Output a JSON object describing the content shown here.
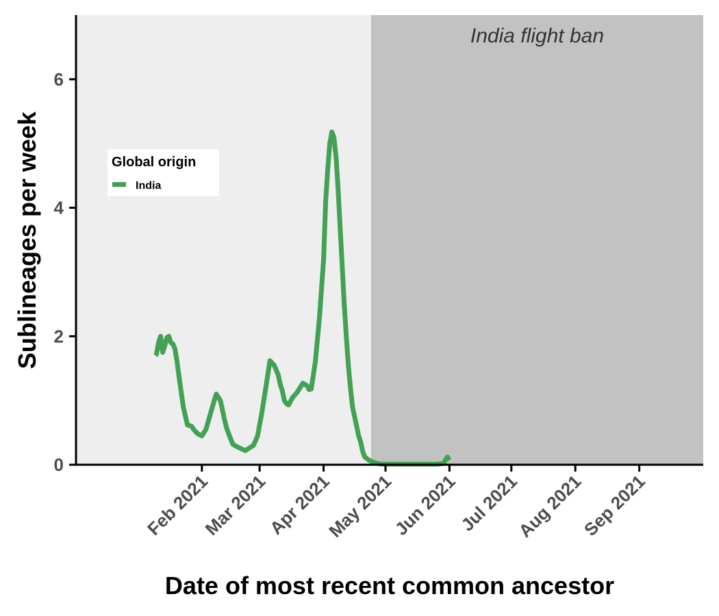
{
  "chart_data": {
    "type": "line",
    "title": "",
    "xlabel": "Date of most recent common ancestor",
    "ylabel": "Sublineages per week",
    "x_unit": "days since 2021-01-01",
    "xlim": [
      -30,
      274
    ],
    "ylim": [
      0,
      7
    ],
    "y_ticks": [
      0,
      2,
      4,
      6
    ],
    "x_ticks": [
      {
        "label": "Feb 2021",
        "value": 31
      },
      {
        "label": "Mar 2021",
        "value": 59
      },
      {
        "label": "Apr 2021",
        "value": 90
      },
      {
        "label": "May 2021",
        "value": 120
      },
      {
        "label": "Jun 2021",
        "value": 151
      },
      {
        "label": "Jul 2021",
        "value": 181
      },
      {
        "label": "Aug 2021",
        "value": 212
      },
      {
        "label": "Sep 2021",
        "value": 243
      }
    ],
    "grid": false,
    "legend": {
      "title": "Global origin",
      "position": "upper-left",
      "entries": [
        "India"
      ]
    },
    "regions": [
      {
        "label": "",
        "x_start": -30,
        "x_end": 113,
        "color": "#eeeeee"
      },
      {
        "label": "India flight ban",
        "x_start": 113,
        "x_end": 274,
        "color": "#c2c2c2"
      }
    ],
    "series": [
      {
        "name": "India",
        "color": "#43a155",
        "x": [
          8.5,
          9,
          10,
          11,
          12,
          13,
          14,
          15,
          16,
          17,
          18,
          19,
          20,
          22,
          24,
          26,
          27,
          29,
          31,
          33,
          35,
          37,
          38,
          40,
          41,
          42,
          43,
          44,
          46,
          48,
          50,
          52,
          54,
          56,
          58,
          60,
          62,
          64,
          66,
          68,
          69,
          70,
          71,
          72,
          73,
          75,
          77,
          79,
          80,
          82,
          83,
          84,
          86,
          88,
          90,
          91,
          92,
          93,
          94,
          95,
          96,
          97,
          98,
          99,
          100,
          101,
          102,
          103,
          104,
          105,
          106,
          107,
          108,
          109,
          110,
          112,
          114,
          116,
          118,
          120,
          125,
          130,
          135,
          140,
          145,
          148,
          150,
          151
        ],
        "y": [
          1.7,
          1.72,
          1.9,
          2.0,
          1.75,
          1.85,
          1.98,
          2.0,
          1.9,
          1.88,
          1.8,
          1.6,
          1.35,
          0.9,
          0.62,
          0.6,
          0.55,
          0.48,
          0.45,
          0.55,
          0.78,
          1.0,
          1.1,
          1.0,
          0.85,
          0.7,
          0.57,
          0.48,
          0.32,
          0.28,
          0.25,
          0.22,
          0.26,
          0.3,
          0.45,
          0.8,
          1.2,
          1.62,
          1.55,
          1.4,
          1.25,
          1.15,
          1.0,
          0.95,
          0.93,
          1.05,
          1.12,
          1.22,
          1.27,
          1.23,
          1.17,
          1.18,
          1.6,
          2.3,
          3.2,
          4.1,
          4.6,
          5.0,
          5.18,
          5.1,
          4.8,
          4.3,
          3.7,
          3.1,
          2.5,
          2.0,
          1.55,
          1.2,
          0.9,
          0.75,
          0.6,
          0.45,
          0.35,
          0.2,
          0.12,
          0.07,
          0.04,
          0.02,
          0.01,
          0.01,
          0.01,
          0.01,
          0.01,
          0.01,
          0.01,
          0.02,
          0.12,
          0.07
        ]
      }
    ]
  }
}
